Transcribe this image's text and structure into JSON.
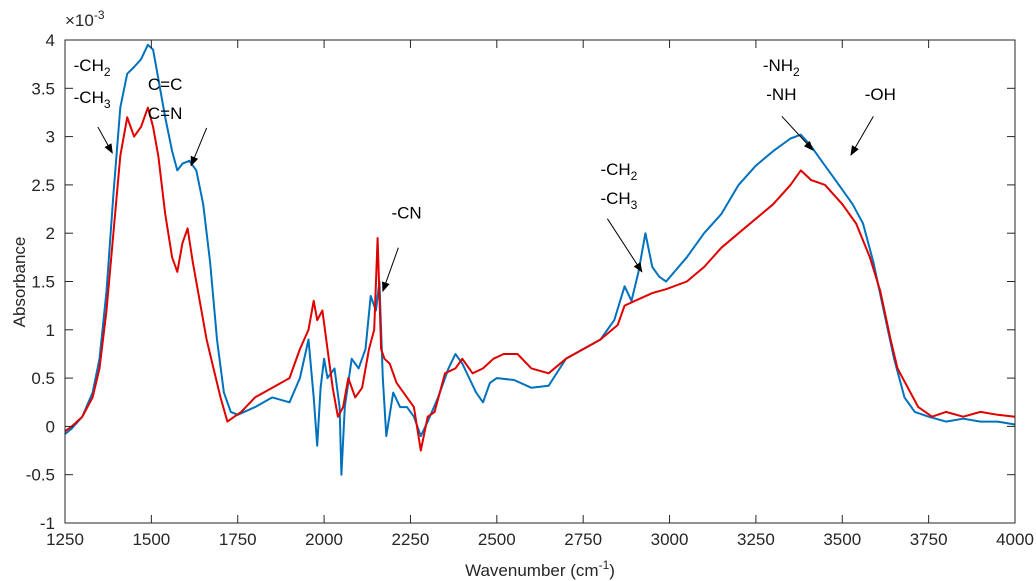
{
  "chart_data": {
    "type": "line",
    "title": "",
    "xlabel": "Wavenumber (cm",
    "xlabel_sup": "-1",
    "xlabel_close": ")",
    "ylabel": "Absorbance",
    "y_multiplier": "×10",
    "y_multiplier_exp": "-3",
    "xlim": [
      1250,
      4000
    ],
    "ylim": [
      -1,
      4
    ],
    "xticks": [
      1250,
      1500,
      1750,
      2000,
      2250,
      2500,
      2750,
      3000,
      3250,
      3500,
      3750,
      4000
    ],
    "yticks": [
      -1,
      -0.5,
      0,
      0.5,
      1,
      1.5,
      2,
      2.5,
      3,
      3.5,
      4
    ],
    "ytick_labels": [
      "-1",
      "-0.5",
      "0",
      "0.5",
      "1",
      "1.5",
      "2",
      "2.5",
      "3",
      "3.5",
      "4"
    ],
    "grid": false,
    "series": [
      {
        "color": "#0072BD",
        "points": [
          [
            1250,
            -0.08
          ],
          [
            1270,
            -0.02
          ],
          [
            1300,
            0.1
          ],
          [
            1330,
            0.35
          ],
          [
            1350,
            0.7
          ],
          [
            1370,
            1.4
          ],
          [
            1390,
            2.4
          ],
          [
            1410,
            3.3
          ],
          [
            1430,
            3.65
          ],
          [
            1450,
            3.72
          ],
          [
            1470,
            3.8
          ],
          [
            1490,
            3.95
          ],
          [
            1505,
            3.9
          ],
          [
            1520,
            3.6
          ],
          [
            1540,
            3.2
          ],
          [
            1560,
            2.85
          ],
          [
            1575,
            2.65
          ],
          [
            1590,
            2.72
          ],
          [
            1610,
            2.75
          ],
          [
            1630,
            2.65
          ],
          [
            1650,
            2.3
          ],
          [
            1670,
            1.7
          ],
          [
            1690,
            0.9
          ],
          [
            1710,
            0.35
          ],
          [
            1730,
            0.15
          ],
          [
            1750,
            0.12
          ],
          [
            1800,
            0.2
          ],
          [
            1850,
            0.3
          ],
          [
            1900,
            0.25
          ],
          [
            1930,
            0.5
          ],
          [
            1955,
            0.9
          ],
          [
            1970,
            0.3
          ],
          [
            1980,
            -0.2
          ],
          [
            1990,
            0.4
          ],
          [
            2000,
            0.7
          ],
          [
            2010,
            0.5
          ],
          [
            2030,
            0.6
          ],
          [
            2045,
            0.2
          ],
          [
            2050,
            -0.5
          ],
          [
            2060,
            0.2
          ],
          [
            2080,
            0.7
          ],
          [
            2100,
            0.6
          ],
          [
            2120,
            0.8
          ],
          [
            2135,
            1.35
          ],
          [
            2150,
            1.2
          ],
          [
            2160,
            1.5
          ],
          [
            2170,
            0.5
          ],
          [
            2180,
            -0.1
          ],
          [
            2200,
            0.35
          ],
          [
            2220,
            0.2
          ],
          [
            2240,
            0.2
          ],
          [
            2260,
            0.1
          ],
          [
            2280,
            -0.1
          ],
          [
            2300,
            0.05
          ],
          [
            2330,
            0.3
          ],
          [
            2360,
            0.6
          ],
          [
            2380,
            0.75
          ],
          [
            2400,
            0.65
          ],
          [
            2420,
            0.5
          ],
          [
            2440,
            0.35
          ],
          [
            2460,
            0.25
          ],
          [
            2480,
            0.45
          ],
          [
            2500,
            0.5
          ],
          [
            2550,
            0.48
          ],
          [
            2600,
            0.4
          ],
          [
            2650,
            0.42
          ],
          [
            2700,
            0.7
          ],
          [
            2750,
            0.8
          ],
          [
            2800,
            0.9
          ],
          [
            2840,
            1.1
          ],
          [
            2870,
            1.45
          ],
          [
            2890,
            1.3
          ],
          [
            2910,
            1.6
          ],
          [
            2930,
            2.0
          ],
          [
            2950,
            1.65
          ],
          [
            2970,
            1.55
          ],
          [
            2990,
            1.5
          ],
          [
            3050,
            1.75
          ],
          [
            3100,
            2.0
          ],
          [
            3150,
            2.2
          ],
          [
            3200,
            2.5
          ],
          [
            3250,
            2.7
          ],
          [
            3300,
            2.85
          ],
          [
            3350,
            2.98
          ],
          [
            3380,
            3.02
          ],
          [
            3410,
            2.9
          ],
          [
            3440,
            2.75
          ],
          [
            3470,
            2.6
          ],
          [
            3500,
            2.45
          ],
          [
            3530,
            2.3
          ],
          [
            3560,
            2.1
          ],
          [
            3590,
            1.7
          ],
          [
            3620,
            1.2
          ],
          [
            3650,
            0.7
          ],
          [
            3680,
            0.3
          ],
          [
            3710,
            0.15
          ],
          [
            3750,
            0.1
          ],
          [
            3800,
            0.05
          ],
          [
            3850,
            0.08
          ],
          [
            3900,
            0.05
          ],
          [
            3950,
            0.05
          ],
          [
            4000,
            0.02
          ]
        ]
      },
      {
        "color": "#E00000",
        "points": [
          [
            1250,
            -0.05
          ],
          [
            1270,
            0.0
          ],
          [
            1300,
            0.1
          ],
          [
            1330,
            0.3
          ],
          [
            1350,
            0.6
          ],
          [
            1370,
            1.2
          ],
          [
            1390,
            2.0
          ],
          [
            1410,
            2.8
          ],
          [
            1430,
            3.2
          ],
          [
            1450,
            3.0
          ],
          [
            1470,
            3.1
          ],
          [
            1490,
            3.3
          ],
          [
            1505,
            3.1
          ],
          [
            1520,
            2.8
          ],
          [
            1540,
            2.2
          ],
          [
            1560,
            1.75
          ],
          [
            1575,
            1.6
          ],
          [
            1590,
            1.9
          ],
          [
            1605,
            2.05
          ],
          [
            1620,
            1.7
          ],
          [
            1640,
            1.3
          ],
          [
            1660,
            0.9
          ],
          [
            1680,
            0.6
          ],
          [
            1700,
            0.3
          ],
          [
            1720,
            0.05
          ],
          [
            1740,
            0.1
          ],
          [
            1760,
            0.15
          ],
          [
            1800,
            0.3
          ],
          [
            1850,
            0.4
          ],
          [
            1900,
            0.5
          ],
          [
            1930,
            0.8
          ],
          [
            1955,
            1.0
          ],
          [
            1970,
            1.3
          ],
          [
            1980,
            1.1
          ],
          [
            1995,
            1.2
          ],
          [
            2010,
            0.8
          ],
          [
            2025,
            0.4
          ],
          [
            2040,
            0.1
          ],
          [
            2055,
            0.2
          ],
          [
            2070,
            0.5
          ],
          [
            2090,
            0.3
          ],
          [
            2110,
            0.4
          ],
          [
            2130,
            0.8
          ],
          [
            2145,
            1.0
          ],
          [
            2155,
            1.95
          ],
          [
            2165,
            0.8
          ],
          [
            2175,
            0.7
          ],
          [
            2190,
            0.65
          ],
          [
            2210,
            0.45
          ],
          [
            2240,
            0.3
          ],
          [
            2260,
            0.2
          ],
          [
            2280,
            -0.25
          ],
          [
            2300,
            0.1
          ],
          [
            2320,
            0.15
          ],
          [
            2350,
            0.55
          ],
          [
            2380,
            0.6
          ],
          [
            2400,
            0.7
          ],
          [
            2430,
            0.55
          ],
          [
            2460,
            0.6
          ],
          [
            2490,
            0.7
          ],
          [
            2520,
            0.75
          ],
          [
            2560,
            0.75
          ],
          [
            2600,
            0.6
          ],
          [
            2650,
            0.55
          ],
          [
            2700,
            0.7
          ],
          [
            2750,
            0.8
          ],
          [
            2800,
            0.9
          ],
          [
            2850,
            1.05
          ],
          [
            2870,
            1.25
          ],
          [
            2900,
            1.3
          ],
          [
            2950,
            1.38
          ],
          [
            2990,
            1.42
          ],
          [
            3050,
            1.5
          ],
          [
            3100,
            1.65
          ],
          [
            3150,
            1.85
          ],
          [
            3200,
            2.0
          ],
          [
            3250,
            2.15
          ],
          [
            3300,
            2.3
          ],
          [
            3350,
            2.5
          ],
          [
            3380,
            2.65
          ],
          [
            3410,
            2.55
          ],
          [
            3450,
            2.5
          ],
          [
            3500,
            2.3
          ],
          [
            3540,
            2.1
          ],
          [
            3580,
            1.75
          ],
          [
            3610,
            1.4
          ],
          [
            3640,
            0.9
          ],
          [
            3660,
            0.6
          ],
          [
            3690,
            0.4
          ],
          [
            3720,
            0.2
          ],
          [
            3760,
            0.1
          ],
          [
            3800,
            0.15
          ],
          [
            3850,
            0.1
          ],
          [
            3900,
            0.15
          ],
          [
            3950,
            0.12
          ],
          [
            4000,
            0.1
          ]
        ]
      }
    ],
    "annotations": [
      {
        "id": "ch2-left",
        "text": "-CH",
        "sub": "2",
        "pos": [
          1275,
          3.68
        ]
      },
      {
        "id": "ch3-left",
        "text": "-CH",
        "sub": "3",
        "pos": [
          1275,
          3.35
        ]
      },
      {
        "id": "cc",
        "text": "C=C",
        "sub": "",
        "pos": [
          1490,
          3.48
        ]
      },
      {
        "id": "cn",
        "text": "C=N",
        "sub": "",
        "pos": [
          1490,
          3.18
        ]
      },
      {
        "id": "nitrile",
        "text": "-CN",
        "sub": "",
        "pos": [
          2195,
          2.15
        ]
      },
      {
        "id": "ch2-mid",
        "text": "-CH",
        "sub": "2",
        "pos": [
          2800,
          2.6
        ]
      },
      {
        "id": "ch3-mid",
        "text": "-CH",
        "sub": "3",
        "pos": [
          2800,
          2.3
        ]
      },
      {
        "id": "nh2",
        "text": "-NH",
        "sub": "2",
        "pos": [
          3270,
          3.68
        ]
      },
      {
        "id": "nh",
        "text": "-NH",
        "sub": "",
        "pos": [
          3280,
          3.38
        ]
      },
      {
        "id": "oh",
        "text": "-OH",
        "sub": "",
        "pos": [
          3565,
          3.38
        ]
      }
    ],
    "arrows": [
      {
        "id": "ch-left-arrow",
        "from": [
          1345,
          3.1
        ],
        "to": [
          1387,
          2.83
        ]
      },
      {
        "id": "ccn-arrow",
        "from": [
          1660,
          3.09
        ],
        "to": [
          1615,
          2.7
        ]
      },
      {
        "id": "nitrile-arrow",
        "from": [
          2215,
          1.85
        ],
        "to": [
          2170,
          1.4
        ]
      },
      {
        "id": "ch-mid-arrow",
        "from": [
          2820,
          2.15
        ],
        "to": [
          2920,
          1.6
        ]
      },
      {
        "id": "nh-arrow",
        "from": [
          3325,
          3.21
        ],
        "to": [
          3415,
          2.86
        ]
      },
      {
        "id": "oh-arrow",
        "from": [
          3590,
          3.21
        ],
        "to": [
          3525,
          2.81
        ]
      }
    ]
  }
}
